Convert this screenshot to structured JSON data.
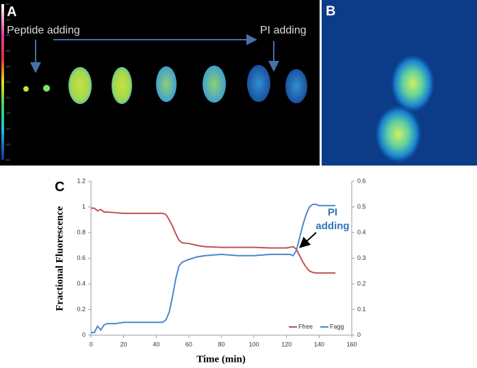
{
  "panel_a": {
    "label": "A",
    "annotations": [
      "Peptide adding",
      "PI adding"
    ],
    "colorbar_labels": [
      "5.0",
      "4.5",
      "4.0",
      "3.5",
      "3.0",
      "2.5",
      "2.0",
      "1.5",
      "1.0",
      "0.5",
      "0.0"
    ]
  },
  "panel_b": {
    "label": "B"
  },
  "panel_c": {
    "label": "C"
  },
  "chart_data": {
    "type": "line",
    "xlabel": "Time (min)",
    "ylabel": "Fractional Fluorescence",
    "annotation": [
      "PI",
      "adding"
    ],
    "x": [
      0,
      2,
      4,
      6,
      8,
      10,
      15,
      20,
      30,
      40,
      44,
      46,
      48,
      50,
      52,
      54,
      56,
      60,
      65,
      70,
      80,
      90,
      100,
      110,
      120,
      122,
      124,
      126,
      128,
      130,
      132,
      134,
      136,
      138,
      140,
      145,
      150
    ],
    "series": [
      {
        "name": "Ffree",
        "color": "#c0504d",
        "values": [
          0.99,
          0.99,
          0.97,
          0.98,
          0.96,
          0.96,
          0.955,
          0.95,
          0.95,
          0.95,
          0.95,
          0.94,
          0.9,
          0.85,
          0.79,
          0.74,
          0.72,
          0.715,
          0.7,
          0.69,
          0.685,
          0.685,
          0.685,
          0.68,
          0.68,
          0.685,
          0.69,
          0.67,
          0.62,
          0.57,
          0.53,
          0.5,
          0.49,
          0.485,
          0.485,
          0.485,
          0.485
        ]
      },
      {
        "name": "Fagg",
        "color": "#4a86c8",
        "axis": "y2",
        "values": [
          0.01,
          0.01,
          0.035,
          0.02,
          0.04,
          0.045,
          0.045,
          0.05,
          0.05,
          0.05,
          0.05,
          0.06,
          0.09,
          0.15,
          0.22,
          0.27,
          0.285,
          0.295,
          0.305,
          0.31,
          0.315,
          0.31,
          0.31,
          0.315,
          0.315,
          0.315,
          0.31,
          0.33,
          0.38,
          0.43,
          0.47,
          0.5,
          0.51,
          0.51,
          0.505,
          0.505,
          0.505
        ]
      }
    ],
    "xlim": [
      0,
      160
    ],
    "xticks": [
      0,
      20,
      40,
      60,
      80,
      100,
      120,
      140,
      160
    ],
    "ylim": [
      0,
      1.2
    ],
    "yticks": [
      0,
      0.2,
      0.4,
      0.6,
      0.8,
      1,
      1.2
    ],
    "y2lim": [
      0,
      0.6
    ],
    "y2ticks": [
      0,
      0.1,
      0.2,
      0.3,
      0.4,
      0.5,
      0.6
    ],
    "legend": "lower right"
  }
}
